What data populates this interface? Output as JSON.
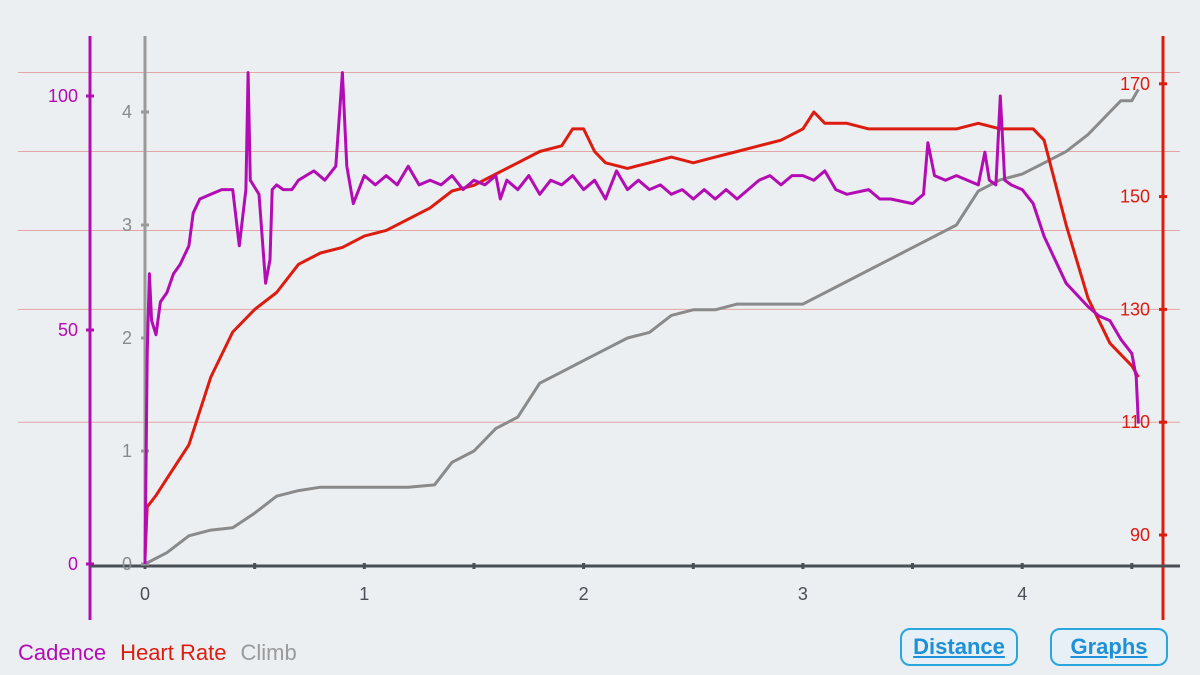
{
  "chart_data": {
    "type": "line",
    "x": {
      "ticks": [
        0,
        1,
        2,
        3,
        4
      ],
      "range": [
        0,
        4.55
      ]
    },
    "axes": {
      "cadence": {
        "ticks": [
          0,
          50,
          100
        ],
        "range": [
          0,
          117
        ],
        "color": "#b40cb4"
      },
      "climb": {
        "ticks": [
          0,
          1,
          2,
          3,
          4
        ],
        "range": [
          0,
          4.5
        ],
        "color": "#8a8a8a"
      },
      "heart_rate": {
        "ticks": [
          90,
          110,
          130,
          150,
          170
        ],
        "range": [
          86,
          173
        ],
        "color": "#dd1c10"
      }
    },
    "grid_hr": [
      110,
      130,
      144,
      158,
      172
    ],
    "series": [
      {
        "name": "Cadence",
        "axis": "cadence",
        "color": "#b40cb4",
        "points": [
          [
            0,
            0
          ],
          [
            0.01,
            45
          ],
          [
            0.02,
            62
          ],
          [
            0.03,
            52
          ],
          [
            0.05,
            49
          ],
          [
            0.07,
            56
          ],
          [
            0.1,
            58
          ],
          [
            0.13,
            62
          ],
          [
            0.16,
            64
          ],
          [
            0.2,
            68
          ],
          [
            0.22,
            75
          ],
          [
            0.25,
            78
          ],
          [
            0.3,
            79
          ],
          [
            0.35,
            80
          ],
          [
            0.4,
            80
          ],
          [
            0.43,
            68
          ],
          [
            0.46,
            80
          ],
          [
            0.47,
            105
          ],
          [
            0.48,
            82
          ],
          [
            0.52,
            79
          ],
          [
            0.55,
            60
          ],
          [
            0.57,
            65
          ],
          [
            0.58,
            80
          ],
          [
            0.6,
            81
          ],
          [
            0.63,
            80
          ],
          [
            0.67,
            80
          ],
          [
            0.7,
            82
          ],
          [
            0.77,
            84
          ],
          [
            0.82,
            82
          ],
          [
            0.87,
            85
          ],
          [
            0.9,
            105
          ],
          [
            0.92,
            85
          ],
          [
            0.95,
            77
          ],
          [
            1.0,
            83
          ],
          [
            1.05,
            81
          ],
          [
            1.1,
            83
          ],
          [
            1.15,
            81
          ],
          [
            1.2,
            85
          ],
          [
            1.25,
            81
          ],
          [
            1.3,
            82
          ],
          [
            1.35,
            81
          ],
          [
            1.4,
            83
          ],
          [
            1.45,
            80
          ],
          [
            1.5,
            82
          ],
          [
            1.55,
            81
          ],
          [
            1.6,
            83
          ],
          [
            1.62,
            78
          ],
          [
            1.65,
            82
          ],
          [
            1.7,
            80
          ],
          [
            1.75,
            83
          ],
          [
            1.8,
            79
          ],
          [
            1.85,
            82
          ],
          [
            1.9,
            81
          ],
          [
            1.95,
            83
          ],
          [
            2.0,
            80
          ],
          [
            2.05,
            82
          ],
          [
            2.1,
            78
          ],
          [
            2.15,
            84
          ],
          [
            2.2,
            80
          ],
          [
            2.25,
            82
          ],
          [
            2.3,
            80
          ],
          [
            2.35,
            81
          ],
          [
            2.4,
            79
          ],
          [
            2.45,
            80
          ],
          [
            2.5,
            78
          ],
          [
            2.55,
            80
          ],
          [
            2.6,
            78
          ],
          [
            2.65,
            80
          ],
          [
            2.7,
            78
          ],
          [
            2.75,
            80
          ],
          [
            2.8,
            82
          ],
          [
            2.85,
            83
          ],
          [
            2.9,
            81
          ],
          [
            2.95,
            83
          ],
          [
            3.0,
            83
          ],
          [
            3.05,
            82
          ],
          [
            3.1,
            84
          ],
          [
            3.15,
            80
          ],
          [
            3.2,
            79
          ],
          [
            3.3,
            80
          ],
          [
            3.35,
            78
          ],
          [
            3.4,
            78
          ],
          [
            3.5,
            77
          ],
          [
            3.55,
            79
          ],
          [
            3.57,
            90
          ],
          [
            3.6,
            83
          ],
          [
            3.65,
            82
          ],
          [
            3.7,
            83
          ],
          [
            3.75,
            82
          ],
          [
            3.8,
            81
          ],
          [
            3.83,
            88
          ],
          [
            3.85,
            82
          ],
          [
            3.88,
            81
          ],
          [
            3.9,
            100
          ],
          [
            3.92,
            82
          ],
          [
            3.95,
            81
          ],
          [
            4.0,
            80
          ],
          [
            4.05,
            77
          ],
          [
            4.1,
            70
          ],
          [
            4.15,
            65
          ],
          [
            4.2,
            60
          ],
          [
            4.3,
            55
          ],
          [
            4.35,
            53
          ],
          [
            4.4,
            52
          ],
          [
            4.45,
            48
          ],
          [
            4.5,
            45
          ],
          [
            4.52,
            40
          ],
          [
            4.53,
            30
          ]
        ]
      },
      {
        "name": "Heart Rate",
        "axis": "heart_rate",
        "color": "#dd1c10",
        "points": [
          [
            0,
            86
          ],
          [
            0.01,
            95
          ],
          [
            0.05,
            97
          ],
          [
            0.1,
            100
          ],
          [
            0.2,
            106
          ],
          [
            0.3,
            118
          ],
          [
            0.4,
            126
          ],
          [
            0.5,
            130
          ],
          [
            0.6,
            133
          ],
          [
            0.7,
            138
          ],
          [
            0.8,
            140
          ],
          [
            0.9,
            141
          ],
          [
            1.0,
            143
          ],
          [
            1.1,
            144
          ],
          [
            1.2,
            146
          ],
          [
            1.3,
            148
          ],
          [
            1.4,
            151
          ],
          [
            1.5,
            152
          ],
          [
            1.6,
            154
          ],
          [
            1.7,
            156
          ],
          [
            1.8,
            158
          ],
          [
            1.9,
            159
          ],
          [
            1.95,
            162
          ],
          [
            2.0,
            162
          ],
          [
            2.05,
            158
          ],
          [
            2.1,
            156
          ],
          [
            2.2,
            155
          ],
          [
            2.3,
            156
          ],
          [
            2.4,
            157
          ],
          [
            2.5,
            156
          ],
          [
            2.6,
            157
          ],
          [
            2.7,
            158
          ],
          [
            2.8,
            159
          ],
          [
            2.9,
            160
          ],
          [
            3.0,
            162
          ],
          [
            3.05,
            165
          ],
          [
            3.1,
            163
          ],
          [
            3.2,
            163
          ],
          [
            3.3,
            162
          ],
          [
            3.4,
            162
          ],
          [
            3.5,
            162
          ],
          [
            3.6,
            162
          ],
          [
            3.7,
            162
          ],
          [
            3.8,
            163
          ],
          [
            3.9,
            162
          ],
          [
            4.0,
            162
          ],
          [
            4.05,
            162
          ],
          [
            4.1,
            160
          ],
          [
            4.2,
            145
          ],
          [
            4.3,
            132
          ],
          [
            4.4,
            124
          ],
          [
            4.5,
            120
          ],
          [
            4.53,
            118
          ]
        ]
      },
      {
        "name": "Climb",
        "axis": "climb",
        "color": "#8a8a8a",
        "points": [
          [
            0,
            0
          ],
          [
            0.1,
            0.1
          ],
          [
            0.2,
            0.25
          ],
          [
            0.3,
            0.3
          ],
          [
            0.4,
            0.32
          ],
          [
            0.5,
            0.45
          ],
          [
            0.6,
            0.6
          ],
          [
            0.7,
            0.65
          ],
          [
            0.8,
            0.68
          ],
          [
            1.0,
            0.68
          ],
          [
            1.2,
            0.68
          ],
          [
            1.32,
            0.7
          ],
          [
            1.4,
            0.9
          ],
          [
            1.5,
            1.0
          ],
          [
            1.6,
            1.2
          ],
          [
            1.7,
            1.3
          ],
          [
            1.8,
            1.6
          ],
          [
            1.9,
            1.7
          ],
          [
            2.0,
            1.8
          ],
          [
            2.1,
            1.9
          ],
          [
            2.2,
            2.0
          ],
          [
            2.3,
            2.05
          ],
          [
            2.4,
            2.2
          ],
          [
            2.5,
            2.25
          ],
          [
            2.6,
            2.25
          ],
          [
            2.7,
            2.3
          ],
          [
            2.8,
            2.3
          ],
          [
            2.9,
            2.3
          ],
          [
            3.0,
            2.3
          ],
          [
            3.1,
            2.4
          ],
          [
            3.2,
            2.5
          ],
          [
            3.3,
            2.6
          ],
          [
            3.4,
            2.7
          ],
          [
            3.5,
            2.8
          ],
          [
            3.6,
            2.9
          ],
          [
            3.7,
            3.0
          ],
          [
            3.8,
            3.3
          ],
          [
            3.9,
            3.4
          ],
          [
            4.0,
            3.45
          ],
          [
            4.1,
            3.55
          ],
          [
            4.2,
            3.65
          ],
          [
            4.3,
            3.8
          ],
          [
            4.4,
            4.0
          ],
          [
            4.45,
            4.1
          ],
          [
            4.5,
            4.1
          ],
          [
            4.53,
            4.2
          ]
        ]
      }
    ]
  },
  "legend": {
    "cadence": "Cadence",
    "heart_rate": "Heart Rate",
    "climb": "Climb"
  },
  "buttons": {
    "distance": "Distance",
    "graphs": "Graphs"
  }
}
